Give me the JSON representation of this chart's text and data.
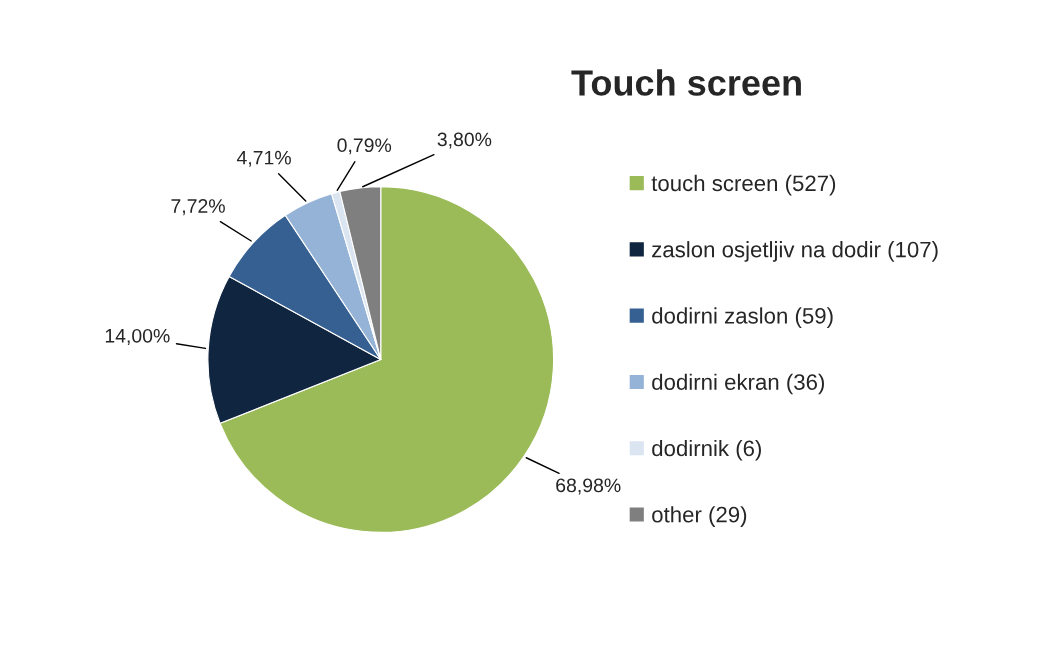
{
  "chart_data": {
    "type": "pie",
    "title": "Touch screen",
    "categories": [
      "touch screen (527)",
      "zaslon osjetljiv na dodir (107)",
      "dodirni zaslon (59)",
      "dodirni ekran (36)",
      "dodirnik (6)",
      "other (29)"
    ],
    "values": [
      68.98,
      14.0,
      7.72,
      4.71,
      0.79,
      3.8
    ],
    "value_labels": [
      "68,98%",
      "14,00%",
      "7,72%",
      "4,71%",
      "0,79%",
      "3,80%"
    ],
    "colors": [
      "#9bbb59",
      "#10253f",
      "#376092",
      "#95b3d7",
      "#dbe5f1",
      "#7f7f7f"
    ],
    "legend": "right"
  }
}
